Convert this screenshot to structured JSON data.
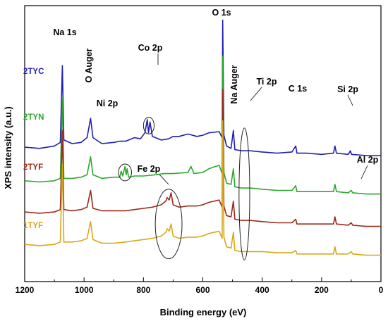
{
  "chart_data": {
    "type": "line",
    "title": "",
    "xlabel": "Binding energy (eV)",
    "ylabel": "XPS intensity (a.u.)",
    "xlim": [
      1200,
      0
    ],
    "x_reversed": true,
    "x_ticks": [
      1200,
      1000,
      800,
      600,
      400,
      200,
      0
    ],
    "y_ticks_shown": false,
    "grid": false,
    "legend": "series labels printed at left next to each spectrum",
    "series": [
      {
        "name": "2TYC",
        "color": "#1f1fb4",
        "points": [
          [
            1200,
            0.94
          ],
          [
            1150,
            0.93
          ],
          [
            1100,
            0.95
          ],
          [
            1080,
            0.98
          ],
          [
            1073,
            1.62
          ],
          [
            1068,
            1.0
          ],
          [
            1040,
            0.97
          ],
          [
            1010,
            0.98
          ],
          [
            990,
            1.02
          ],
          [
            978,
            1.18
          ],
          [
            970,
            1.02
          ],
          [
            940,
            0.97
          ],
          [
            900,
            0.98
          ],
          [
            880,
            0.99
          ],
          [
            860,
            0.99
          ],
          [
            830,
            1.02
          ],
          [
            810,
            1.01
          ],
          [
            795,
            1.06
          ],
          [
            787,
            1.17
          ],
          [
            783,
            1.06
          ],
          [
            778,
            1.15
          ],
          [
            770,
            1.03
          ],
          [
            740,
            1.0
          ],
          [
            715,
            1.01
          ],
          [
            700,
            1.03
          ],
          [
            680,
            1.03
          ],
          [
            650,
            1.05
          ],
          [
            620,
            1.03
          ],
          [
            600,
            1.04
          ],
          [
            580,
            1.06
          ],
          [
            545,
            1.07
          ],
          [
            535,
            1.02
          ],
          [
            533,
            2.0
          ],
          [
            529,
            1.04
          ],
          [
            520,
            0.95
          ],
          [
            505,
            0.93
          ],
          [
            497,
            1.08
          ],
          [
            492,
            0.92
          ],
          [
            470,
            0.91
          ],
          [
            440,
            0.91
          ],
          [
            400,
            0.9
          ],
          [
            350,
            0.89
          ],
          [
            300,
            0.9
          ],
          [
            287,
            0.95
          ],
          [
            283,
            0.89
          ],
          [
            250,
            0.89
          ],
          [
            200,
            0.88
          ],
          [
            160,
            0.89
          ],
          [
            155,
            0.95
          ],
          [
            150,
            0.89
          ],
          [
            110,
            0.88
          ],
          [
            103,
            0.91
          ],
          [
            99,
            0.88
          ],
          [
            50,
            0.87
          ],
          [
            0,
            0.87
          ]
        ]
      },
      {
        "name": "2TYN",
        "color": "#2ca82c",
        "points": [
          [
            1200,
            0.66
          ],
          [
            1150,
            0.65
          ],
          [
            1100,
            0.66
          ],
          [
            1080,
            0.68
          ],
          [
            1073,
            1.35
          ],
          [
            1068,
            0.68
          ],
          [
            1040,
            0.68
          ],
          [
            1010,
            0.69
          ],
          [
            990,
            0.71
          ],
          [
            978,
            0.86
          ],
          [
            970,
            0.71
          ],
          [
            940,
            0.68
          ],
          [
            900,
            0.69
          ],
          [
            880,
            0.69
          ],
          [
            875,
            0.74
          ],
          [
            870,
            0.7
          ],
          [
            862,
            0.78
          ],
          [
            858,
            0.71
          ],
          [
            855,
            0.76
          ],
          [
            850,
            0.69
          ],
          [
            830,
            0.7
          ],
          [
            800,
            0.7
          ],
          [
            760,
            0.71
          ],
          [
            730,
            0.72
          ],
          [
            700,
            0.72
          ],
          [
            650,
            0.73
          ],
          [
            640,
            0.78
          ],
          [
            630,
            0.72
          ],
          [
            600,
            0.73
          ],
          [
            580,
            0.76
          ],
          [
            545,
            0.79
          ],
          [
            535,
            0.72
          ],
          [
            533,
            1.7
          ],
          [
            529,
            0.73
          ],
          [
            520,
            0.64
          ],
          [
            505,
            0.63
          ],
          [
            497,
            0.76
          ],
          [
            492,
            0.61
          ],
          [
            470,
            0.6
          ],
          [
            440,
            0.6
          ],
          [
            400,
            0.59
          ],
          [
            350,
            0.58
          ],
          [
            300,
            0.58
          ],
          [
            287,
            0.62
          ],
          [
            283,
            0.57
          ],
          [
            250,
            0.57
          ],
          [
            200,
            0.57
          ],
          [
            160,
            0.57
          ],
          [
            155,
            0.63
          ],
          [
            150,
            0.57
          ],
          [
            110,
            0.56
          ],
          [
            100,
            0.58
          ],
          [
            95,
            0.56
          ],
          [
            50,
            0.55
          ],
          [
            0,
            0.55
          ]
        ]
      },
      {
        "name": "2TYF",
        "color": "#9b2a1a",
        "points": [
          [
            1200,
            0.4
          ],
          [
            1150,
            0.39
          ],
          [
            1100,
            0.4
          ],
          [
            1080,
            0.42
          ],
          [
            1073,
            1.08
          ],
          [
            1068,
            0.42
          ],
          [
            1040,
            0.41
          ],
          [
            1010,
            0.42
          ],
          [
            990,
            0.44
          ],
          [
            978,
            0.58
          ],
          [
            970,
            0.43
          ],
          [
            940,
            0.41
          ],
          [
            900,
            0.41
          ],
          [
            860,
            0.41
          ],
          [
            830,
            0.42
          ],
          [
            800,
            0.43
          ],
          [
            770,
            0.44
          ],
          [
            740,
            0.46
          ],
          [
            725,
            0.49
          ],
          [
            720,
            0.52
          ],
          [
            713,
            0.5
          ],
          [
            707,
            0.56
          ],
          [
            700,
            0.46
          ],
          [
            680,
            0.44
          ],
          [
            650,
            0.45
          ],
          [
            620,
            0.45
          ],
          [
            600,
            0.46
          ],
          [
            580,
            0.48
          ],
          [
            545,
            0.5
          ],
          [
            535,
            0.44
          ],
          [
            533,
            1.42
          ],
          [
            529,
            0.45
          ],
          [
            520,
            0.37
          ],
          [
            505,
            0.36
          ],
          [
            497,
            0.49
          ],
          [
            492,
            0.34
          ],
          [
            470,
            0.33
          ],
          [
            440,
            0.33
          ],
          [
            400,
            0.32
          ],
          [
            350,
            0.31
          ],
          [
            300,
            0.31
          ],
          [
            287,
            0.34
          ],
          [
            283,
            0.3
          ],
          [
            250,
            0.3
          ],
          [
            200,
            0.3
          ],
          [
            160,
            0.3
          ],
          [
            155,
            0.36
          ],
          [
            150,
            0.3
          ],
          [
            110,
            0.29
          ],
          [
            100,
            0.31
          ],
          [
            95,
            0.29
          ],
          [
            50,
            0.28
          ],
          [
            0,
            0.28
          ]
        ]
      },
      {
        "name": "1TYF",
        "color": "#d8a817",
        "points": [
          [
            1200,
            0.13
          ],
          [
            1150,
            0.12
          ],
          [
            1100,
            0.13
          ],
          [
            1080,
            0.15
          ],
          [
            1073,
            0.8
          ],
          [
            1068,
            0.15
          ],
          [
            1040,
            0.15
          ],
          [
            1010,
            0.16
          ],
          [
            990,
            0.18
          ],
          [
            978,
            0.32
          ],
          [
            970,
            0.17
          ],
          [
            940,
            0.14
          ],
          [
            900,
            0.14
          ],
          [
            860,
            0.15
          ],
          [
            830,
            0.16
          ],
          [
            800,
            0.17
          ],
          [
            770,
            0.18
          ],
          [
            740,
            0.2
          ],
          [
            725,
            0.23
          ],
          [
            720,
            0.26
          ],
          [
            713,
            0.24
          ],
          [
            707,
            0.3
          ],
          [
            700,
            0.2
          ],
          [
            680,
            0.18
          ],
          [
            650,
            0.19
          ],
          [
            620,
            0.19
          ],
          [
            600,
            0.2
          ],
          [
            580,
            0.22
          ],
          [
            545,
            0.24
          ],
          [
            535,
            0.18
          ],
          [
            533,
            1.16
          ],
          [
            529,
            0.19
          ],
          [
            520,
            0.11
          ],
          [
            505,
            0.1
          ],
          [
            497,
            0.23
          ],
          [
            492,
            0.08
          ],
          [
            470,
            0.07
          ],
          [
            440,
            0.07
          ],
          [
            400,
            0.07
          ],
          [
            350,
            0.06
          ],
          [
            300,
            0.06
          ],
          [
            287,
            0.08
          ],
          [
            283,
            0.05
          ],
          [
            250,
            0.05
          ],
          [
            200,
            0.05
          ],
          [
            160,
            0.05
          ],
          [
            155,
            0.11
          ],
          [
            150,
            0.05
          ],
          [
            110,
            0.05
          ],
          [
            100,
            0.07
          ],
          [
            95,
            0.05
          ],
          [
            50,
            0.04
          ],
          [
            0,
            0.04
          ]
        ]
      }
    ],
    "annotations": [
      "Na 1s",
      "O Auger",
      "Co 2p",
      "O 1s",
      "Na Auger",
      "Ti 2p",
      "C 1s",
      "Si 2p",
      "Ni 2p",
      "Fe 2p",
      "Al 2p"
    ],
    "ellipses": [
      {
        "label": "Co 2p",
        "cx": 782,
        "cy": 1.12,
        "rx": 18,
        "ry": 0.07
      },
      {
        "label": "Ni 2p",
        "cx": 862,
        "cy": 0.73,
        "rx": 22,
        "ry": 0.07
      },
      {
        "label": "Fe 2p",
        "cx": 715,
        "cy": 0.3,
        "rx": 45,
        "ry": 0.29
      },
      {
        "label": "Ti 2p",
        "cx": 460,
        "cy": 0.55,
        "rx": 18,
        "ry": 0.55
      }
    ]
  }
}
